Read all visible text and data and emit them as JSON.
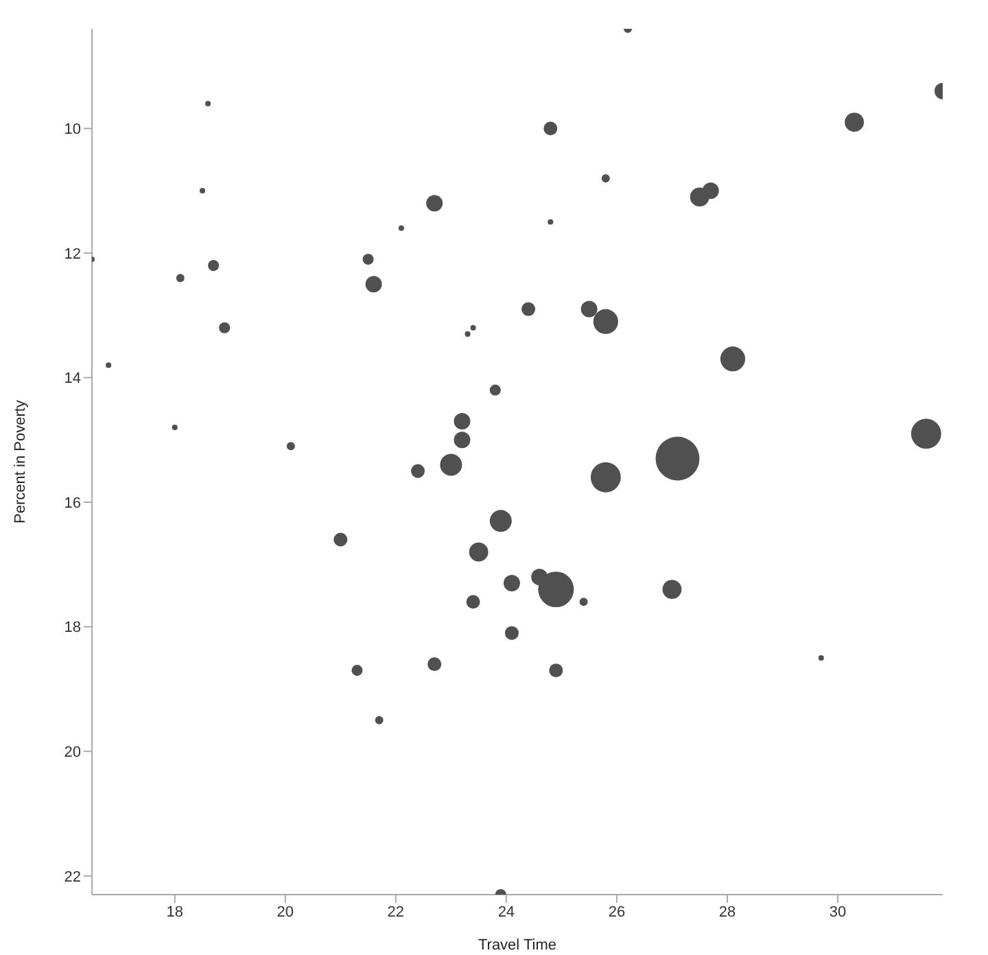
{
  "chart_data": {
    "type": "bubble",
    "xlabel": "Travel Time",
    "ylabel": "Percent in Poverty",
    "xlim": [
      16.5,
      31.9
    ],
    "ylim": [
      22.3,
      8.4
    ],
    "xticks": [
      18,
      20,
      22,
      24,
      26,
      28,
      30
    ],
    "yticks": [
      10,
      12,
      14,
      16,
      18,
      20,
      22
    ],
    "series": [
      {
        "color": "#505050",
        "x": [
          26.2,
          31.9,
          18.6,
          24.8,
          30.3,
          18.5,
          25.8,
          22.7,
          24.8,
          27.5,
          27.7,
          22.1,
          16.5,
          18.1,
          18.7,
          21.5,
          21.6,
          18.9,
          23.4,
          23.3,
          24.4,
          25.5,
          25.8,
          28.1,
          16.8,
          23.8,
          18.0,
          23.2,
          20.1,
          23.2,
          22.4,
          23.0,
          25.8,
          27.1,
          31.6,
          23.9,
          21.0,
          23.5,
          24.6,
          24.1,
          24.9,
          25.4,
          23.4,
          27.0,
          24.1,
          29.7,
          21.3,
          22.7,
          24.9,
          21.7,
          23.9
        ],
        "values": [
          8.4,
          9.4,
          9.6,
          10.0,
          9.9,
          11.0,
          10.8,
          11.2,
          11.5,
          11.1,
          11.0,
          11.6,
          12.1,
          12.4,
          12.2,
          12.1,
          12.5,
          13.2,
          13.2,
          13.3,
          12.9,
          12.9,
          13.1,
          13.7,
          13.8,
          14.2,
          14.8,
          14.7,
          15.1,
          15.0,
          15.5,
          15.4,
          15.6,
          15.3,
          14.9,
          16.3,
          16.6,
          16.8,
          17.2,
          17.3,
          17.4,
          17.6,
          17.6,
          17.4,
          18.1,
          18.5,
          18.7,
          18.6,
          18.7,
          19.5,
          22.3
        ],
        "sizes": [
          0.035,
          0.14,
          0.016,
          0.098,
          0.19,
          0.016,
          0.035,
          0.14,
          0.016,
          0.19,
          0.14,
          0.016,
          0.016,
          0.035,
          0.063,
          0.063,
          0.14,
          0.063,
          0.016,
          0.016,
          0.098,
          0.14,
          0.32,
          0.32,
          0.016,
          0.063,
          0.016,
          0.14,
          0.035,
          0.14,
          0.098,
          0.25,
          0.47,
          1,
          0.47,
          0.25,
          0.098,
          0.19,
          0.14,
          0.14,
          0.66,
          0.035,
          0.098,
          0.19,
          0.098,
          0.016,
          0.063,
          0.098,
          0.098,
          0.035,
          0.063
        ]
      }
    ]
  }
}
